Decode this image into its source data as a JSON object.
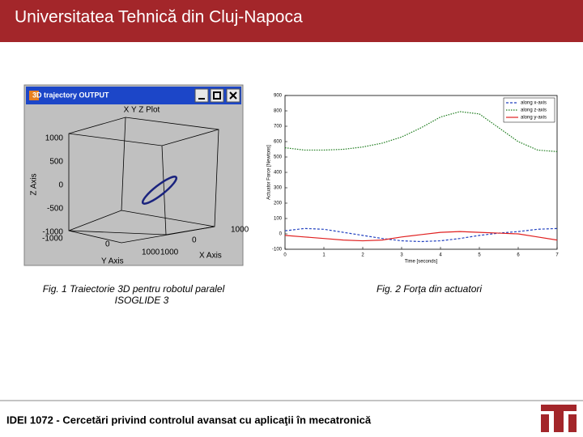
{
  "header": {
    "title": "Universitatea Tehnică din Cluj-Napoca"
  },
  "figure1": {
    "window_title": "3D trajectory OUTPUT",
    "plot_title": "X Y Z Plot",
    "z_label": "Z Axis",
    "x_label": "X Axis",
    "y_label": "Y Axis",
    "z_ticks": [
      "1000",
      "500",
      "0",
      "-500",
      "-1000"
    ],
    "bottom_ticks": [
      "-1000",
      "0",
      "1000",
      "1000",
      "0",
      "1000"
    ],
    "caption": [
      "Fig. 1  Traiectorie 3D pentru robotul paralel",
      "ISOGLIDE 3"
    ]
  },
  "figure2": {
    "caption": "Fig. 2 Forţa din actuatori",
    "chart": {
      "type": "line",
      "xlabel": "Time [seconds]",
      "ylabel": "Actuator Force [Newtons]",
      "x": [
        0,
        0.5,
        1,
        1.5,
        2,
        2.5,
        3,
        3.5,
        4,
        4.5,
        5,
        5.5,
        6,
        6.5,
        7
      ],
      "xlim": [
        0,
        7
      ],
      "xticks": [
        0,
        1,
        2,
        3,
        4,
        5,
        6,
        7
      ],
      "ylim": [
        -100,
        900
      ],
      "yticks": [
        -100,
        0,
        100,
        200,
        300,
        400,
        500,
        600,
        700,
        800,
        900
      ],
      "legend": "upper right",
      "series": [
        {
          "name": "along x-axis",
          "color": "#1f3fbf",
          "values": [
            20,
            35,
            30,
            10,
            -10,
            -30,
            -45,
            -50,
            -45,
            -30,
            -10,
            5,
            15,
            30,
            35
          ]
        },
        {
          "name": "along z-axis",
          "color": "#1a7a1a",
          "values": [
            560,
            545,
            545,
            550,
            565,
            590,
            630,
            690,
            760,
            795,
            780,
            690,
            600,
            545,
            535
          ]
        },
        {
          "name": "along y-axis",
          "color": "#e02020",
          "values": [
            -10,
            -20,
            -30,
            -40,
            -45,
            -40,
            -20,
            -5,
            10,
            15,
            10,
            5,
            0,
            -20,
            -40
          ]
        }
      ]
    }
  },
  "footer": {
    "text": "IDEI 1072 - Cercetări privind controlul avansat cu aplicaţii în mecatronică"
  }
}
